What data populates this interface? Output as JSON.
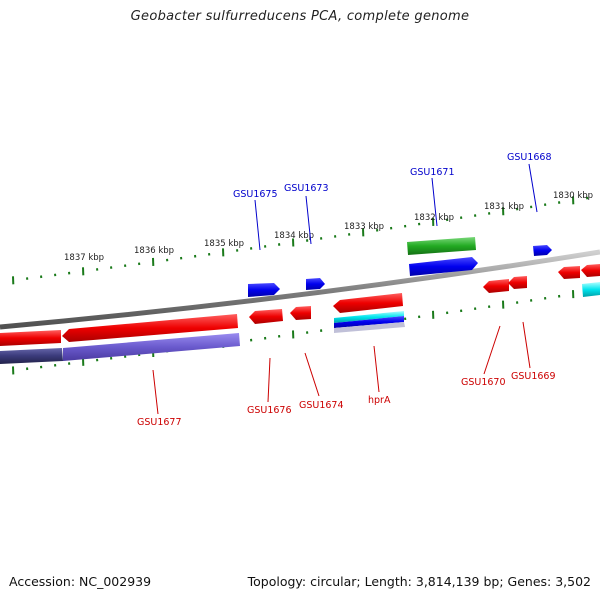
{
  "title": "Geobacter sulfurreducens PCA, complete genome",
  "accession": "Accession: NC_002939",
  "stats": "Topology: circular; Length: 3,814,139 bp; Genes: 3,502",
  "scale": [
    "1837 kbp",
    "1836 kbp",
    "1835 kbp",
    "1834 kbp",
    "1833 kbp",
    "1832 kbp",
    "1831 kbp",
    "1830 kbp"
  ],
  "genes_top": [
    {
      "label": "GSU1675",
      "color": "#0000cc"
    },
    {
      "label": "GSU1673",
      "color": "#0000cc"
    },
    {
      "label": "GSU1671",
      "color": "#0000cc"
    },
    {
      "label": "GSU1668",
      "color": "#0000cc"
    }
  ],
  "genes_bottom": [
    {
      "label": "GSU1677",
      "color": "#cc0000"
    },
    {
      "label": "GSU1676",
      "color": "#cc0000"
    },
    {
      "label": "GSU1674",
      "color": "#cc0000"
    },
    {
      "label": "hprA",
      "color": "#cc0000"
    },
    {
      "label": "GSU1670",
      "color": "#cc0000"
    },
    {
      "label": "GSU1669",
      "color": "#cc0000"
    }
  ],
  "colors": {
    "forward": "#0000ee",
    "reverse": "#ee0000",
    "rna": "#22aa22",
    "misc": "#00e5ee",
    "region": "#6a5acd",
    "backbone": "#808080",
    "ticks": "#1a7a1a"
  }
}
